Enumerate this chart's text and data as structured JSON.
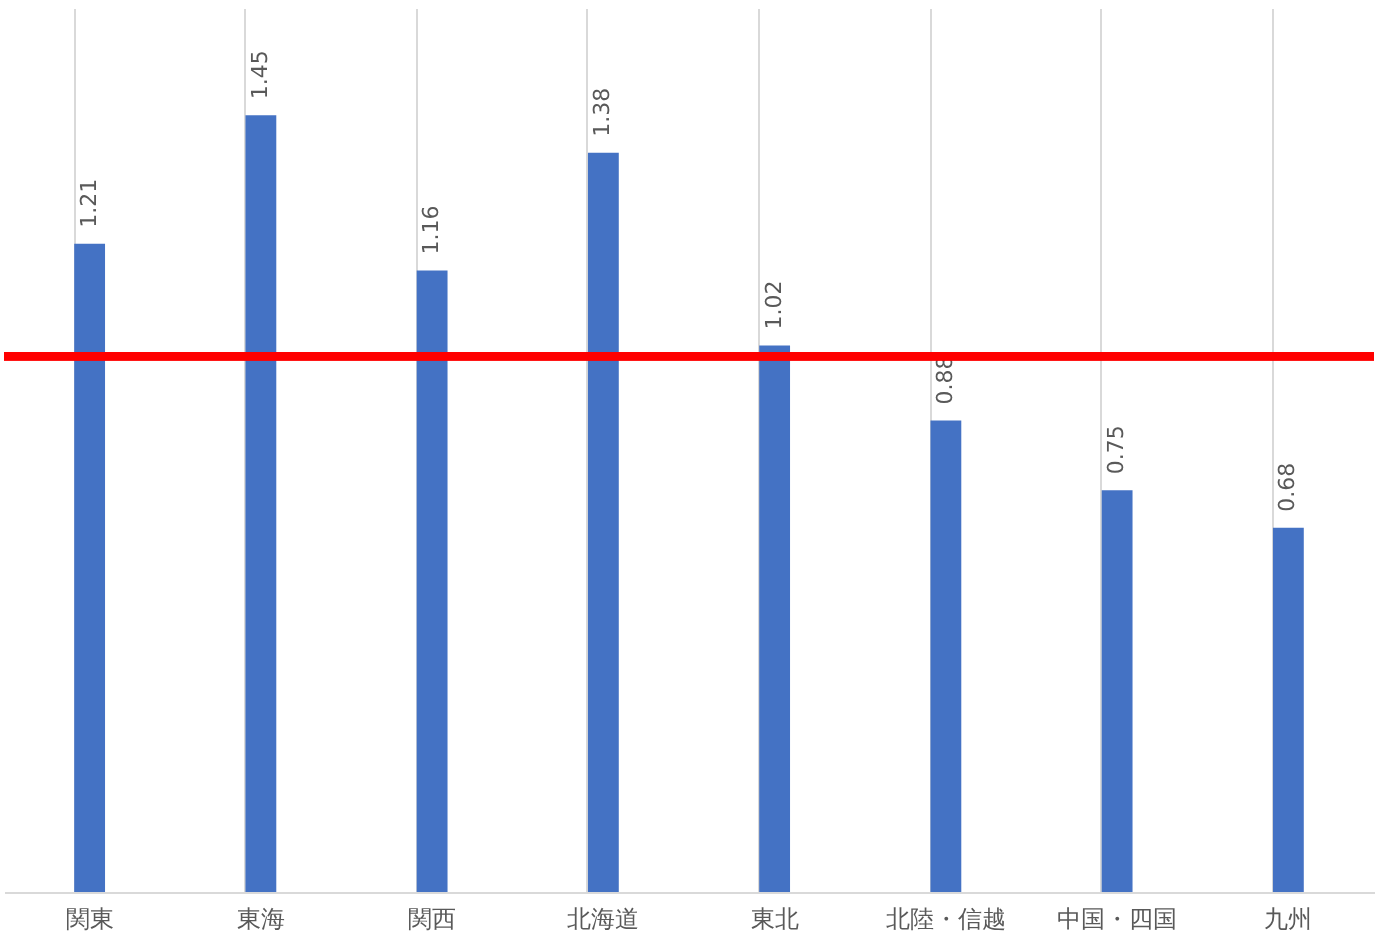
{
  "chart_data": {
    "type": "bar",
    "categories": [
      "関東",
      "東海",
      "関西",
      "北海道",
      "東北",
      "北陸・信越",
      "中国・四国",
      "九州"
    ],
    "values": [
      1.21,
      1.45,
      1.16,
      1.38,
      1.02,
      0.88,
      0.75,
      0.68
    ],
    "color": "#4472c4",
    "ylim": [
      0,
      1.65
    ],
    "data_labels": true,
    "tick_labels": "x",
    "grid": "x",
    "ref_lines": [
      {
        "axis": "y",
        "value": 1.0,
        "color": "#ff0000"
      }
    ]
  }
}
